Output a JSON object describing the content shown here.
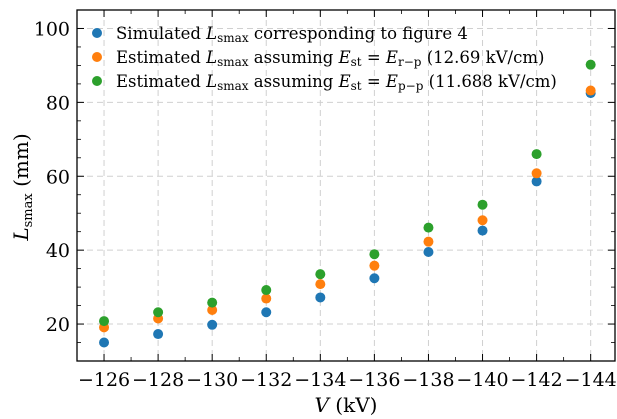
{
  "chart_data": {
    "type": "scatter",
    "xlabel": "V (kV)",
    "ylabel": "L_smax (mm)",
    "x": [
      -126,
      -128,
      -130,
      -132,
      -134,
      -136,
      -138,
      -140,
      -142,
      -144
    ],
    "x_tick_labels": [
      "−126",
      "−128",
      "−130",
      "−132",
      "−134",
      "−136",
      "−138",
      "−140",
      "−142",
      "−144"
    ],
    "y_ticks": [
      20,
      40,
      60,
      80,
      100
    ],
    "xlim": [
      -125.0,
      -144.9
    ],
    "ylim": [
      10,
      105
    ],
    "x_axis_direction": "decreasing",
    "grid": true,
    "legend_position": "top-left",
    "series": [
      {
        "name": "Simulated L_smax corresponding to figure 4",
        "color": "#1f77b4",
        "values": [
          15.0,
          17.3,
          19.8,
          23.2,
          27.2,
          32.4,
          39.5,
          45.3,
          58.6,
          82.5
        ]
      },
      {
        "name": "Estimated L_smax assuming E_st = E_r−p (12.69 kV/cm)",
        "color": "#ff7f0e",
        "values": [
          19.1,
          21.5,
          23.8,
          26.9,
          30.8,
          35.8,
          42.3,
          48.1,
          60.8,
          83.2
        ]
      },
      {
        "name": "Estimated L_smax assuming E_st = E_p−p (11.688 kV/cm)",
        "color": "#2ca02c",
        "values": [
          20.8,
          23.2,
          25.8,
          29.2,
          33.5,
          38.9,
          46.1,
          52.3,
          66.0,
          90.2
        ]
      }
    ]
  }
}
